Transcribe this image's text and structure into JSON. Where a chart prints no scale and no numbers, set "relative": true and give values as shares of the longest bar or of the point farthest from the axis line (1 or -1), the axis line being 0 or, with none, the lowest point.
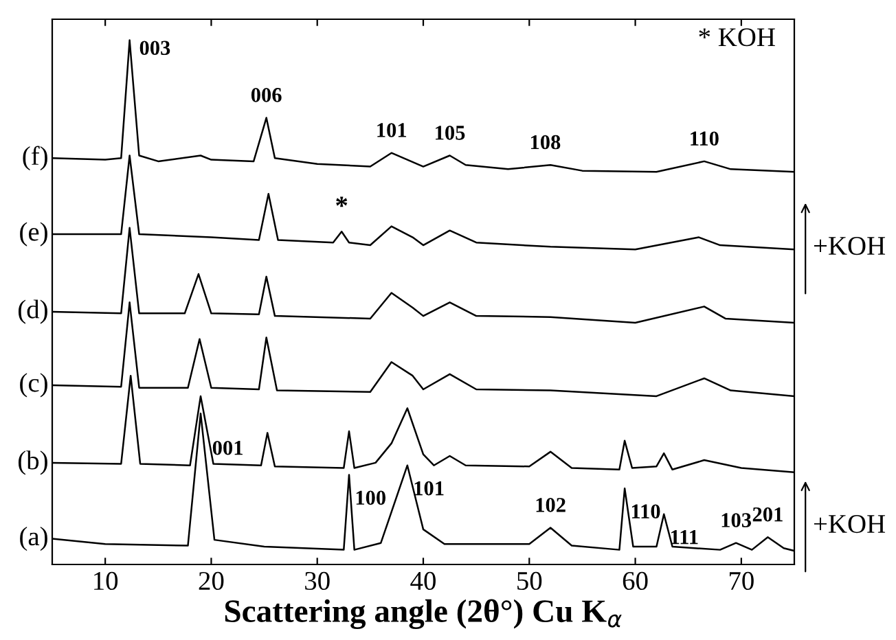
{
  "chart_data": {
    "type": "line",
    "relative": true,
    "xlabel": "Scattering angle (2θ°) Cu K$_{α}$",
    "xlim": [
      5,
      75
    ],
    "xticks": [
      10,
      20,
      30,
      40,
      50,
      60,
      70
    ],
    "grid": false,
    "legend": false,
    "marker": "none",
    "line_style": "solid",
    "series": [
      {
        "name": "(a)",
        "color": "#000000",
        "x": [
          5,
          10,
          17.8,
          19,
          20.3,
          25,
          32.5,
          33,
          33.5,
          36,
          38.5,
          40,
          42,
          50,
          52,
          54,
          58.5,
          59,
          59.8,
          62,
          62.7,
          63.5,
          68,
          69.5,
          71,
          72.5,
          74,
          75
        ],
        "values": [
          0.049,
          0.039,
          0.036,
          0.288,
          0.047,
          0.034,
          0.028,
          0.171,
          0.028,
          0.041,
          0.189,
          0.067,
          0.039,
          0.039,
          0.07,
          0.036,
          0.028,
          0.145,
          0.034,
          0.034,
          0.096,
          0.034,
          0.028,
          0.041,
          0.028,
          0.052,
          0.031,
          0.026
        ]
      },
      {
        "name": "(b)",
        "color": "#000000",
        "x": [
          5,
          11.5,
          12.4,
          13.3,
          18,
          19,
          20.2,
          24.7,
          25.3,
          26,
          32.5,
          33,
          33.5,
          35.5,
          37,
          38.5,
          40,
          41,
          42.5,
          44,
          50,
          52,
          54,
          58.5,
          59,
          59.7,
          62,
          62.7,
          63.5,
          66.5,
          70,
          75
        ],
        "values": [
          0.194,
          0.192,
          0.36,
          0.192,
          0.189,
          0.321,
          0.192,
          0.189,
          0.251,
          0.187,
          0.184,
          0.254,
          0.184,
          0.194,
          0.231,
          0.298,
          0.21,
          0.189,
          0.207,
          0.189,
          0.187,
          0.215,
          0.184,
          0.181,
          0.236,
          0.184,
          0.187,
          0.212,
          0.181,
          0.199,
          0.184,
          0.176
        ]
      },
      {
        "name": "(c)",
        "color": "#000000",
        "x": [
          5,
          11.5,
          12.3,
          13.2,
          17.8,
          18.9,
          20,
          24.5,
          25.2,
          26.2,
          35,
          37,
          39,
          40,
          42.5,
          45,
          52,
          62,
          66.5,
          69,
          75
        ],
        "values": [
          0.342,
          0.339,
          0.5,
          0.337,
          0.337,
          0.43,
          0.337,
          0.334,
          0.433,
          0.332,
          0.329,
          0.386,
          0.36,
          0.334,
          0.363,
          0.334,
          0.332,
          0.321,
          0.355,
          0.332,
          0.321
        ]
      },
      {
        "name": "(d)",
        "color": "#000000",
        "x": [
          5,
          11.5,
          12.3,
          13.2,
          17.5,
          18.8,
          20,
          24.5,
          25.2,
          26,
          35,
          37,
          39,
          40,
          42.5,
          45,
          52,
          60,
          66.5,
          68.5,
          75
        ],
        "values": [
          0.482,
          0.479,
          0.642,
          0.479,
          0.479,
          0.554,
          0.479,
          0.477,
          0.549,
          0.474,
          0.469,
          0.518,
          0.49,
          0.474,
          0.5,
          0.474,
          0.472,
          0.461,
          0.492,
          0.469,
          0.461
        ]
      },
      {
        "name": "(e)",
        "color": "#000000",
        "x": [
          5,
          11.5,
          12.3,
          13.2,
          20,
          24.5,
          25.4,
          26.3,
          31.5,
          32.3,
          33,
          35,
          37,
          39,
          40,
          42.5,
          45,
          52,
          60,
          66,
          68,
          75
        ],
        "values": [
          0.63,
          0.63,
          0.78,
          0.63,
          0.624,
          0.619,
          0.707,
          0.619,
          0.614,
          0.635,
          0.614,
          0.609,
          0.645,
          0.624,
          0.609,
          0.637,
          0.614,
          0.606,
          0.601,
          0.624,
          0.609,
          0.601
        ]
      },
      {
        "name": "(f)",
        "color": "#000000",
        "x": [
          5,
          10,
          11.5,
          12.3,
          13.2,
          15,
          19,
          20,
          24,
          25.2,
          26,
          30,
          35,
          37,
          38.5,
          40,
          42.5,
          44,
          48,
          52,
          55,
          62,
          66.5,
          69,
          75
        ],
        "values": [
          0.775,
          0.772,
          0.775,
          1.0,
          0.78,
          0.769,
          0.78,
          0.772,
          0.769,
          0.852,
          0.775,
          0.764,
          0.759,
          0.785,
          0.772,
          0.759,
          0.78,
          0.762,
          0.754,
          0.762,
          0.751,
          0.749,
          0.769,
          0.754,
          0.749
        ]
      }
    ],
    "annotations": [
      {
        "text": "003",
        "x": 12.3,
        "y": 1.0
      },
      {
        "text": "006",
        "x": 25.2,
        "y": 0.852
      },
      {
        "text": "101",
        "x": 37,
        "y": 0.785
      },
      {
        "text": "105",
        "x": 42.5,
        "y": 0.78
      },
      {
        "text": "108",
        "x": 51.5,
        "y": 0.762
      },
      {
        "text": "110",
        "x": 66.5,
        "y": 0.769
      },
      {
        "text": "*",
        "x": 32.3,
        "y": 0.635
      },
      {
        "text": "001",
        "x": 19,
        "y": 0.288
      },
      {
        "text": "100",
        "x": 33,
        "y": 0.171
      },
      {
        "text": "101",
        "x": 38.5,
        "y": 0.189
      },
      {
        "text": "102",
        "x": 52,
        "y": 0.07
      },
      {
        "text": "110",
        "x": 59,
        "y": 0.145
      },
      {
        "text": "111",
        "x": 62.7,
        "y": 0.096
      },
      {
        "text": "103",
        "x": 69.5,
        "y": 0.041
      },
      {
        "text": "201",
        "x": 72.5,
        "y": 0.052
      },
      "* KOH",
      "+KOH",
      "+KOH"
    ]
  }
}
